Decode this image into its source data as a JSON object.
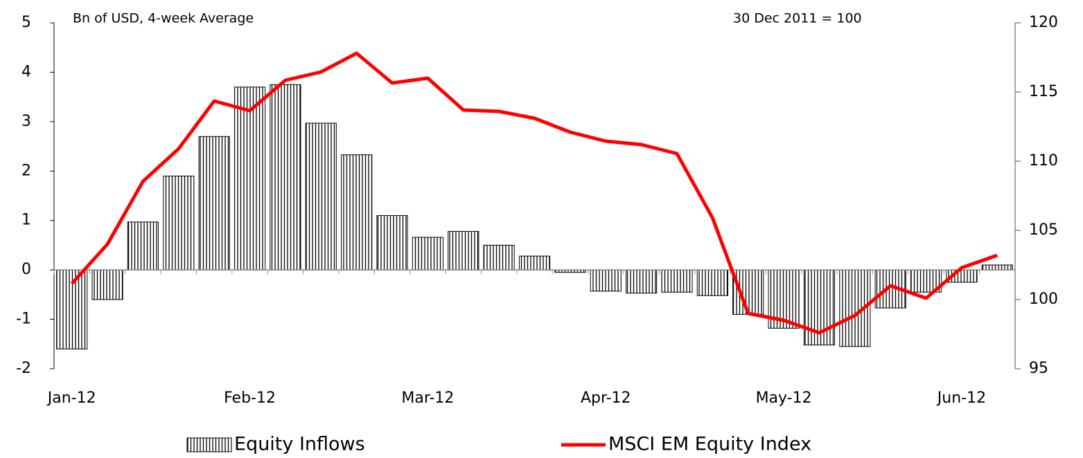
{
  "chart_data": {
    "type": "bar-line",
    "annotations": [
      "Bn of USD, 4-week Average",
      "30 Dec 2011 = 100"
    ],
    "categories": [
      "Jan-12",
      null,
      null,
      null,
      null,
      "Feb-12",
      null,
      null,
      null,
      null,
      "Mar-12",
      null,
      null,
      null,
      null,
      "Apr-12",
      null,
      null,
      null,
      null,
      "May-12",
      null,
      null,
      null,
      null,
      "Jun-12",
      null
    ],
    "series": [
      {
        "name": "Equity Inflows",
        "type": "bar",
        "color": "#000000",
        "values": [
          -1.6,
          -0.6,
          0.97,
          1.9,
          2.7,
          3.7,
          3.75,
          2.97,
          2.33,
          1.1,
          0.66,
          0.78,
          0.5,
          0.28,
          -0.05,
          -0.43,
          -0.47,
          -0.45,
          -0.52,
          -0.9,
          -1.18,
          -1.52,
          -1.55,
          -0.77,
          -0.45,
          -0.25,
          0.1
        ]
      },
      {
        "name": "MSCI EM Equity Index",
        "type": "line",
        "axis": "y2",
        "color": "#ff0000",
        "values": [
          101.15,
          104.0,
          108.55,
          110.9,
          114.35,
          113.65,
          115.85,
          116.45,
          117.8,
          115.65,
          116.0,
          113.7,
          113.6,
          113.1,
          112.1,
          111.45,
          111.2,
          110.55,
          105.9,
          99.0,
          98.5,
          97.6,
          98.85,
          101.0,
          100.1,
          102.3,
          103.2
        ]
      }
    ],
    "ylim": [
      -2,
      5
    ],
    "yticks": [
      -2,
      -1,
      0,
      1,
      2,
      3,
      4,
      5
    ],
    "y2lim": [
      95,
      120
    ],
    "y2ticks": [
      95,
      100,
      105,
      110,
      115,
      120
    ],
    "legend": "bottom"
  }
}
